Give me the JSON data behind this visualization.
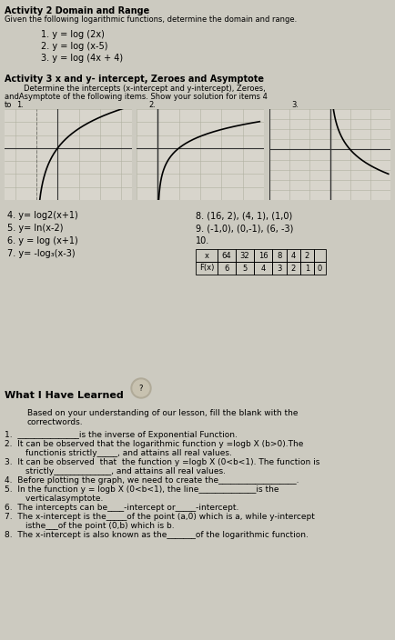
{
  "bg_color": "#cccac0",
  "title_act2": "Activity 2 Domain and Range",
  "subtitle_act2": "Given the following logarithmic functions, determine the domain and range.",
  "items_act2": [
    "1. y = log (2x)",
    "2. y = log (x-5)",
    "3. y = log (4x + 4)"
  ],
  "title_act3": "Activity 3 x and y- intercept, Zeroes and Asymptote",
  "subtitle_act3_line1": "        Determine the intercepts (x-intercept and y-intercept), Zeroes,",
  "subtitle_act3_line2": "andAsymptote of the following items. Show your solution for items 4",
  "subtitle_act3_line3": "to",
  "graph_label1": "1.",
  "graph_label2": "2.",
  "graph_label3": "3.",
  "items_act3_left": [
    "4. y= log2(x+1)",
    "5. y= ln(x-2)",
    "6. y = log (x+1)",
    "7. y= -log₃(x-3)"
  ],
  "items_act3_right_1": "8. (16, 2), (4, 1), (1,0)",
  "items_act3_right_2": "9. (-1,0), (0,-1), (6, -3)",
  "items_act3_right_3": "10.",
  "table_headers": [
    "x",
    "64",
    "32",
    "16",
    "8",
    "4",
    "2",
    ""
  ],
  "table_row": [
    "F(x)",
    "6",
    "5",
    "4",
    "3",
    "2",
    "1",
    "0"
  ],
  "title_learned": "What I Have Learned",
  "learned_line1": "Based on your understanding of our lesson, fill the blank with the",
  "learned_line2": "correctwords.",
  "learned_items": [
    "1.  _______________is the inverse of Exponential Function.",
    "2.  It can be observed that the logarithmic function y =logb X (b>0).The\n        functionis strictly_____, and attains all real values.",
    "3.  It can be observed  that  the function y =logb X (0<b<1). The function is\n        strictly______________, and attains all real values.",
    "4.  Before plotting the graph, we need to create the___________________.",
    "5.  In the function y = logb X (0<b<1), the line______________is the\n        verticalasymptote.",
    "6.  The intercepts can be____-intercept or_____-intercept.",
    "7.  The x-intercept is the_____of the point (a,0) which is a, while y-intercept\n        isthe___of the point (0,b) which is b.",
    "8.  The x-intercept is also known as the_______of the logarithmic function."
  ],
  "graph1_xlim": [
    -2,
    4
  ],
  "graph1_ylim": [
    -4,
    3
  ],
  "graph2_xlim": [
    -1,
    5
  ],
  "graph2_ylim": [
    -4,
    3
  ],
  "graph3_xlim": [
    0,
    6
  ],
  "graph3_ylim": [
    -4,
    4
  ]
}
